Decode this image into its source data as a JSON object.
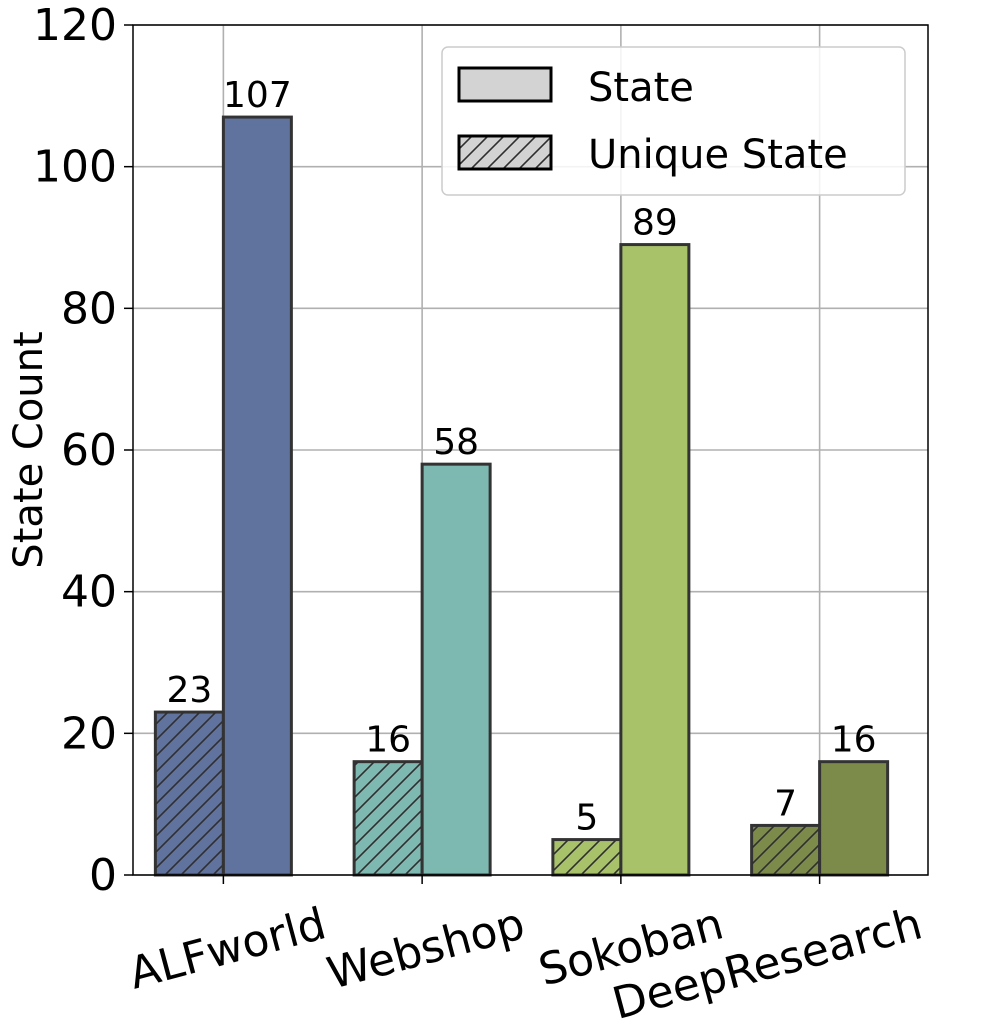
{
  "chart_data": {
    "type": "bar",
    "ylabel": "State Count",
    "ylim": [
      0,
      120
    ],
    "yticks": [
      0,
      20,
      40,
      60,
      80,
      100,
      120
    ],
    "categories": [
      "ALFworld",
      "Webshop",
      "Sokoban",
      "DeepResearch"
    ],
    "colors": [
      "#60739e",
      "#7eb9b1",
      "#a8c26a",
      "#7c8b4a"
    ],
    "series": [
      {
        "name": "Unique State",
        "pattern": "hatched",
        "values": [
          23,
          16,
          5,
          7
        ]
      },
      {
        "name": "State",
        "pattern": "solid",
        "values": [
          107,
          58,
          89,
          16
        ]
      }
    ],
    "legend": {
      "position": "top-right",
      "swatch_color": "#d3d3d3",
      "entries": [
        "State",
        "Unique State"
      ]
    },
    "grid": true,
    "data_labels": true
  }
}
